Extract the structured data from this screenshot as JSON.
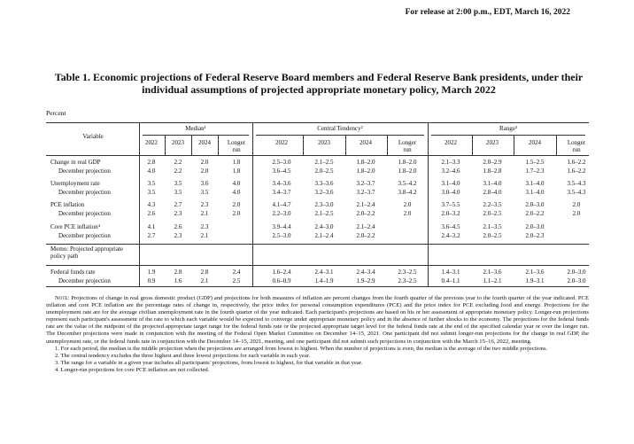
{
  "header": {
    "release": "For release at 2:00 p.m., EDT, March 16, 2022"
  },
  "title": "Table 1. Economic projections of Federal Reserve Board members and Federal Reserve Bank presidents, under their individual assumptions of projected appropriate monetary policy, March 2022",
  "table": {
    "unit": "Percent",
    "variable_header": "Variable",
    "groups": [
      "Median¹",
      "Central Tendency²",
      "Range³"
    ],
    "years": [
      "2022",
      "2023",
      "2024",
      "Longer run"
    ],
    "rows": [
      {
        "label": "Change in real GDP",
        "values": [
          "2.8",
          "2.2",
          "2.0",
          "1.8",
          "2.5–3.0",
          "2.1–2.5",
          "1.8–2.0",
          "1.8–2.0",
          "2.1–3.3",
          "2.0–2.9",
          "1.5–2.5",
          "1.6–2.2"
        ]
      },
      {
        "label": "December projection",
        "values": [
          "4.0",
          "2.2",
          "2.0",
          "1.8",
          "3.6–4.5",
          "2.0–2.5",
          "1.8–2.0",
          "1.8–2.0",
          "3.2–4.6",
          "1.8–2.8",
          "1.7–2.3",
          "1.6–2.2"
        ]
      },
      {
        "label": "Unemployment rate",
        "values": [
          "3.5",
          "3.5",
          "3.6",
          "4.0",
          "3.4–3.6",
          "3.3–3.6",
          "3.2–3.7",
          "3.5–4.2",
          "3.1–4.0",
          "3.1–4.0",
          "3.1–4.0",
          "3.5–4.3"
        ]
      },
      {
        "label": "December projection",
        "values": [
          "3.5",
          "3.5",
          "3.5",
          "4.0",
          "3.4–3.7",
          "3.2–3.6",
          "3.2–3.7",
          "3.8–4.2",
          "3.0–4.0",
          "2.8–4.0",
          "3.1–4.0",
          "3.5–4.3"
        ]
      },
      {
        "label": "PCE inflation",
        "values": [
          "4.3",
          "2.7",
          "2.3",
          "2.0",
          "4.1–4.7",
          "2.3–3.0",
          "2.1–2.4",
          "2.0",
          "3.7–5.5",
          "2.2–3.5",
          "2.0–3.0",
          "2.0"
        ]
      },
      {
        "label": "December projection",
        "values": [
          "2.6",
          "2.3",
          "2.1",
          "2.0",
          "2.2–3.0",
          "2.1–2.5",
          "2.0–2.2",
          "2.0",
          "2.0–3.2",
          "2.0–2.5",
          "2.0–2.2",
          "2.0"
        ]
      },
      {
        "label": "Core PCE inflation⁴",
        "values": [
          "4.1",
          "2.6",
          "2.3",
          null,
          "3.9–4.4",
          "2.4–3.0",
          "2.1–2.4",
          null,
          "3.6–4.5",
          "2.1–3.5",
          "2.0–3.0",
          null
        ]
      },
      {
        "label": "December projection",
        "values": [
          "2.7",
          "2.3",
          "2.1",
          null,
          "2.5–3.0",
          "2.1–2.4",
          "2.0–2.2",
          null,
          "2.4–3.2",
          "2.0–2.5",
          "2.0–2.3",
          null
        ]
      },
      {
        "label": "Federal funds rate",
        "values": [
          "1.9",
          "2.8",
          "2.8",
          "2.4",
          "1.6–2.4",
          "2.4–3.1",
          "2.4–3.4",
          "2.3–2.5",
          "1.4–3.1",
          "2.1–3.6",
          "2.1–3.6",
          "2.0–3.0"
        ]
      },
      {
        "label": "December projection",
        "values": [
          "0.9",
          "1.6",
          "2.1",
          "2.5",
          "0.6–0.9",
          "1.4–1.9",
          "1.9–2.9",
          "2.3–2.5",
          "0.4–1.1",
          "1.1–2.1",
          "1.9–3.1",
          "2.0–3.0"
        ]
      }
    ],
    "memo": "Memo: Projected appropriate policy path"
  },
  "notes": {
    "label": "Note:",
    "body": "Projections of change in real gross domestic product (GDP) and projections for both measures of inflation are percent changes from the fourth quarter of the previous year to the fourth quarter of the year indicated. PCE inflation and core PCE inflation are the percentage rates of change in, respectively, the price index for personal consumption expenditures (PCE) and the price index for PCE excluding food and energy. Projections for the unemployment rate are for the average civilian unemployment rate in the fourth quarter of the year indicated. Each participant's projections are based on his or her assessment of appropriate monetary policy. Longer-run projections represent each participant's assessment of the rate to which each variable would be expected to converge under appropriate monetary policy and in the absence of further shocks to the economy. The projections for the federal funds rate are the value of the midpoint of the projected appropriate target range for the federal funds rate or the projected appropriate target level for the federal funds rate at the end of the specified calendar year or over the longer run. The December projections were made in conjunction with the meeting of the Federal Open Market Committee on December 14–15, 2021. One participant did not submit longer-run projections for the change in real GDP, the unemployment rate, or the federal funds rate in conjunction with the December 14–15, 2021, meeting, and one participant did not submit such projections in conjunction with the March 15–16, 2022, meeting.",
    "footnotes": [
      "1. For each period, the median is the middle projection when the projections are arranged from lowest to highest. When the number of projections is even, the median is the average of the two middle projections.",
      "2. The central tendency excludes the three highest and three lowest projections for each variable in each year.",
      "3. The range for a variable in a given year includes all participants' projections, from lowest to highest, for that variable in that year.",
      "4. Longer-run projections for core PCE inflation are not collected."
    ]
  }
}
